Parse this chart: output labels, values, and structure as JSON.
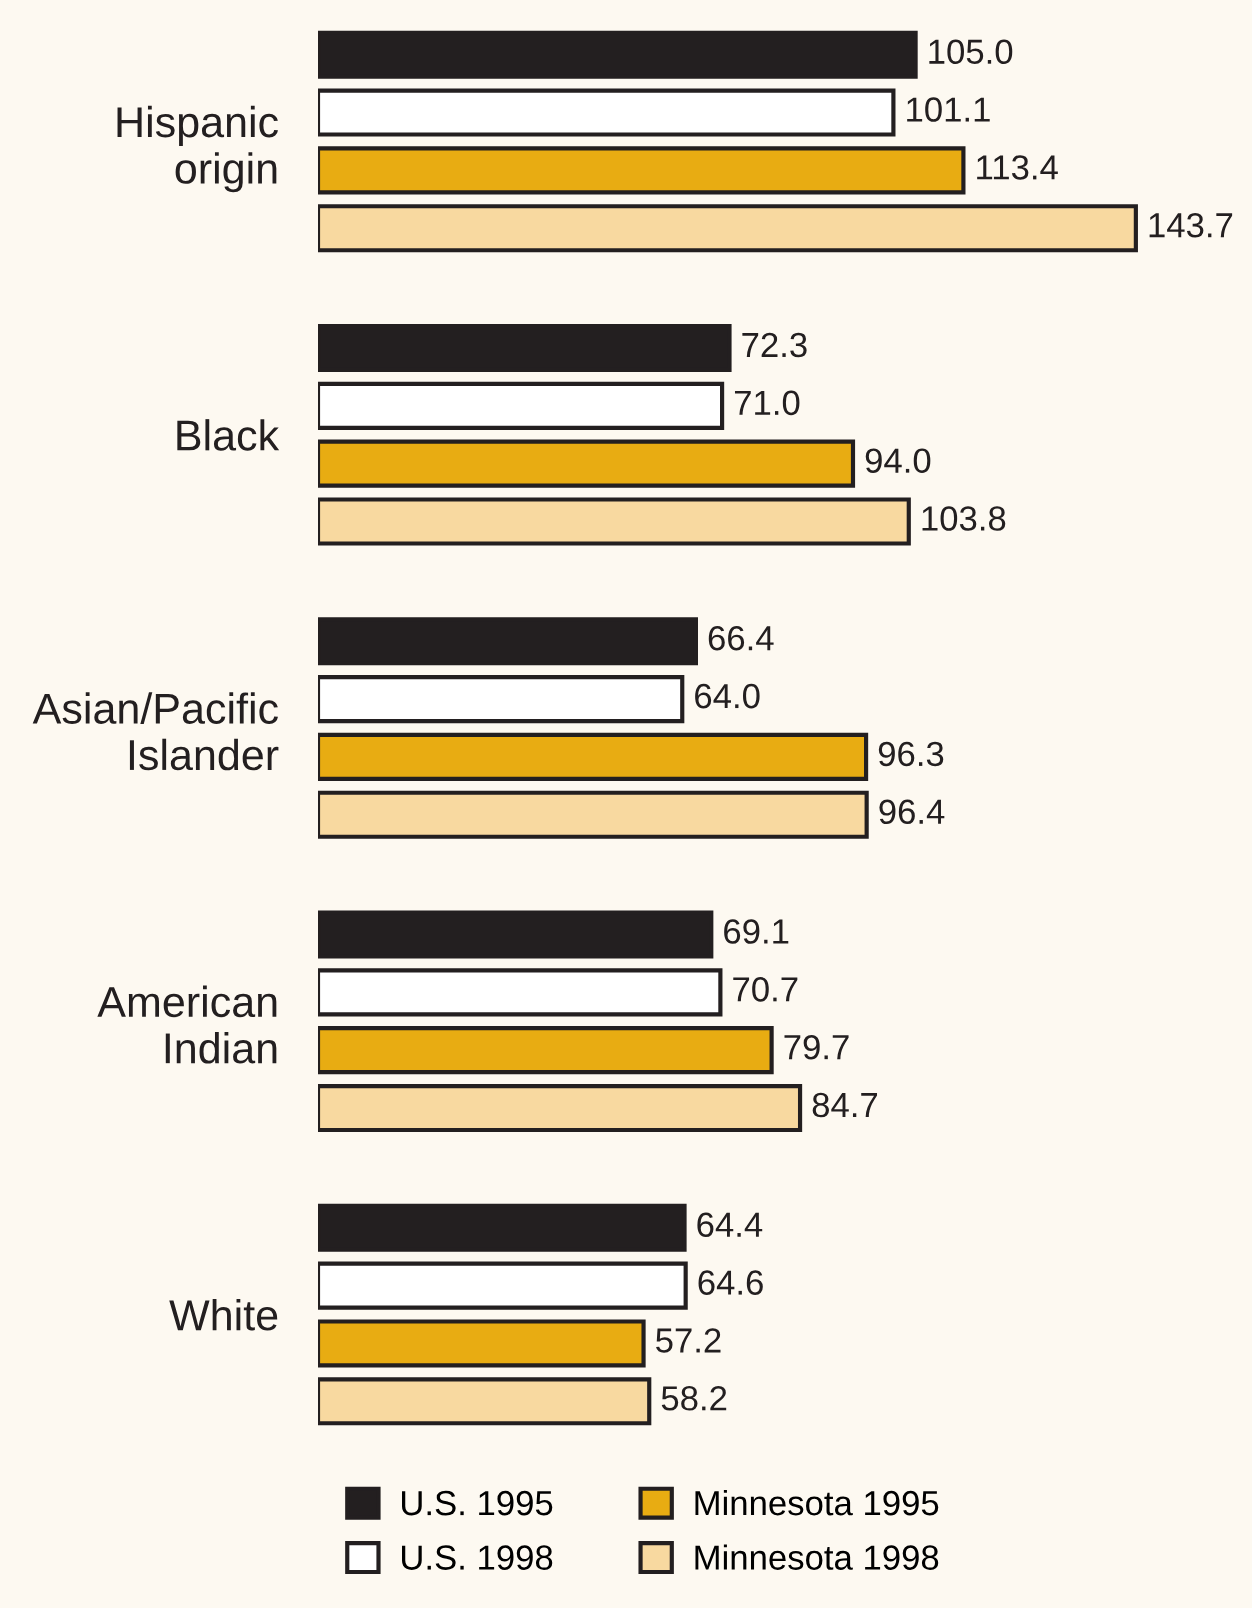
{
  "chart_data": {
    "type": "bar",
    "orientation": "horizontal",
    "categories": [
      "Hispanic origin",
      "Black",
      "Asian/Pacific Islander",
      "American Indian",
      "White"
    ],
    "series": [
      {
        "name": "U.S. 1995",
        "color": "#231f20",
        "values": [
          105.0,
          72.3,
          66.4,
          69.1,
          64.4
        ],
        "value_labels": [
          "105.0",
          "72.3",
          "66.4",
          "69.1",
          "64.4"
        ]
      },
      {
        "name": "U.S. 1998",
        "color": "#ffffff",
        "values": [
          101.1,
          71.0,
          64.0,
          70.7,
          64.6
        ],
        "value_labels": [
          "101.1",
          "71.0",
          "64.0",
          "70.7",
          "64.6"
        ]
      },
      {
        "name": "Minnesota 1995",
        "color": "#e8ac12",
        "values": [
          113.4,
          94.0,
          96.3,
          79.7,
          57.2
        ],
        "value_labels": [
          "113.4",
          "94.0",
          "96.3",
          "79.7",
          "57.2"
        ]
      },
      {
        "name": "Minnesota 1998",
        "color": "#f8d9a0",
        "values": [
          143.7,
          103.8,
          96.4,
          84.7,
          58.2
        ],
        "value_labels": [
          "143.7",
          "103.8",
          "96.4",
          "84.7",
          "58.2"
        ]
      }
    ],
    "legend": "bottom"
  }
}
